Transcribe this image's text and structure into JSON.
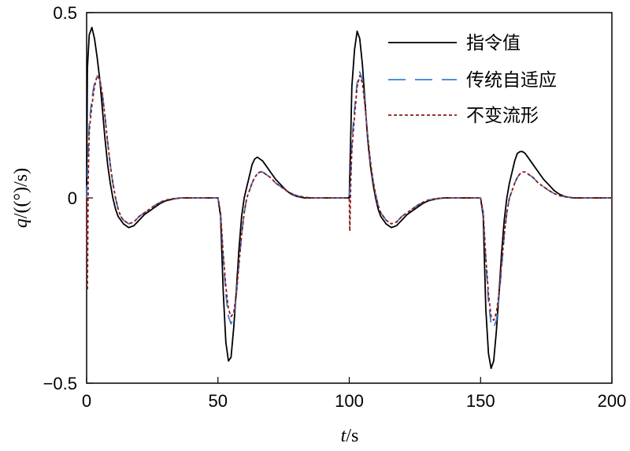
{
  "chart_data": {
    "type": "line",
    "xlabel": {
      "var": "t",
      "unit": "/s"
    },
    "ylabel": {
      "var": "q",
      "unit": "/((°)/s)"
    },
    "xlim": [
      0,
      200
    ],
    "ylim": [
      -0.5,
      0.5
    ],
    "xticks": [
      0,
      50,
      100,
      150,
      200
    ],
    "yticks": [
      -0.5,
      0,
      0.5
    ],
    "ytick_labels": [
      "−0.5",
      "0",
      "0.5"
    ],
    "grid": false,
    "legend_position": "top-right",
    "series": [
      {
        "name": "指令值",
        "color": "#000000",
        "style": "solid",
        "points": [
          [
            0,
            0
          ],
          [
            0.3,
            0.35
          ],
          [
            1,
            0.44
          ],
          [
            2,
            0.46
          ],
          [
            3,
            0.43
          ],
          [
            4,
            0.38
          ],
          [
            5,
            0.32
          ],
          [
            6,
            0.24
          ],
          [
            7,
            0.16
          ],
          [
            8,
            0.09
          ],
          [
            9,
            0.04
          ],
          [
            10,
            0.0
          ],
          [
            11,
            -0.03
          ],
          [
            12,
            -0.05
          ],
          [
            13,
            -0.06
          ],
          [
            14,
            -0.07
          ],
          [
            16,
            -0.08
          ],
          [
            18,
            -0.075
          ],
          [
            20,
            -0.06
          ],
          [
            22,
            -0.045
          ],
          [
            24,
            -0.035
          ],
          [
            26,
            -0.025
          ],
          [
            28,
            -0.015
          ],
          [
            30,
            -0.008
          ],
          [
            33,
            -0.003
          ],
          [
            36,
            0
          ],
          [
            50,
            0
          ],
          [
            51,
            -0.05
          ],
          [
            52,
            -0.25
          ],
          [
            53,
            -0.39
          ],
          [
            54,
            -0.44
          ],
          [
            55,
            -0.43
          ],
          [
            56,
            -0.35
          ],
          [
            57,
            -0.25
          ],
          [
            58,
            -0.14
          ],
          [
            59,
            -0.05
          ],
          [
            60,
            0.0
          ],
          [
            61,
            0.03
          ],
          [
            62,
            0.06
          ],
          [
            63,
            0.09
          ],
          [
            64,
            0.105
          ],
          [
            65,
            0.11
          ],
          [
            66,
            0.105
          ],
          [
            67,
            0.1
          ],
          [
            68,
            0.09
          ],
          [
            70,
            0.07
          ],
          [
            72,
            0.05
          ],
          [
            74,
            0.035
          ],
          [
            76,
            0.02
          ],
          [
            78,
            0.01
          ],
          [
            80,
            0.004
          ],
          [
            83,
            0
          ],
          [
            100,
            0
          ],
          [
            100.5,
            0.15
          ],
          [
            101,
            0.3
          ],
          [
            102,
            0.4
          ],
          [
            103,
            0.45
          ],
          [
            104,
            0.43
          ],
          [
            105,
            0.36
          ],
          [
            106,
            0.26
          ],
          [
            107,
            0.16
          ],
          [
            108,
            0.09
          ],
          [
            109,
            0.04
          ],
          [
            110,
            0.0
          ],
          [
            111,
            -0.03
          ],
          [
            112,
            -0.05
          ],
          [
            114,
            -0.07
          ],
          [
            116,
            -0.08
          ],
          [
            118,
            -0.075
          ],
          [
            120,
            -0.06
          ],
          [
            122,
            -0.045
          ],
          [
            124,
            -0.035
          ],
          [
            126,
            -0.025
          ],
          [
            128,
            -0.015
          ],
          [
            130,
            -0.008
          ],
          [
            133,
            -0.003
          ],
          [
            136,
            0
          ],
          [
            150,
            0
          ],
          [
            151,
            -0.05
          ],
          [
            152,
            -0.3
          ],
          [
            153,
            -0.42
          ],
          [
            154,
            -0.46
          ],
          [
            155,
            -0.44
          ],
          [
            156,
            -0.36
          ],
          [
            157,
            -0.26
          ],
          [
            158,
            -0.15
          ],
          [
            159,
            -0.06
          ],
          [
            160,
            0.0
          ],
          [
            161,
            0.04
          ],
          [
            162,
            0.07
          ],
          [
            163,
            0.1
          ],
          [
            164,
            0.12
          ],
          [
            165,
            0.125
          ],
          [
            166,
            0.125
          ],
          [
            167,
            0.12
          ],
          [
            168,
            0.11
          ],
          [
            170,
            0.09
          ],
          [
            172,
            0.07
          ],
          [
            174,
            0.05
          ],
          [
            176,
            0.035
          ],
          [
            178,
            0.02
          ],
          [
            180,
            0.01
          ],
          [
            182,
            0.004
          ],
          [
            185,
            0
          ],
          [
            200,
            0
          ]
        ]
      },
      {
        "name": "传统自适应",
        "color": "#3a7fd5",
        "style": "dashed",
        "points": [
          [
            0,
            0
          ],
          [
            0.5,
            0.1
          ],
          [
            1,
            0.2
          ],
          [
            2,
            0.27
          ],
          [
            3,
            0.31
          ],
          [
            4,
            0.33
          ],
          [
            5,
            0.32
          ],
          [
            6,
            0.28
          ],
          [
            7,
            0.22
          ],
          [
            8,
            0.15
          ],
          [
            9,
            0.09
          ],
          [
            10,
            0.04
          ],
          [
            11,
            0.0
          ],
          [
            12,
            -0.03
          ],
          [
            13,
            -0.05
          ],
          [
            14,
            -0.06
          ],
          [
            16,
            -0.07
          ],
          [
            18,
            -0.065
          ],
          [
            20,
            -0.05
          ],
          [
            22,
            -0.04
          ],
          [
            24,
            -0.03
          ],
          [
            26,
            -0.02
          ],
          [
            28,
            -0.012
          ],
          [
            30,
            -0.006
          ],
          [
            33,
            -0.002
          ],
          [
            36,
            0
          ],
          [
            50,
            0
          ],
          [
            51,
            -0.04
          ],
          [
            52,
            -0.16
          ],
          [
            53,
            -0.26
          ],
          [
            54,
            -0.32
          ],
          [
            55,
            -0.34
          ],
          [
            56,
            -0.32
          ],
          [
            57,
            -0.26
          ],
          [
            58,
            -0.18
          ],
          [
            59,
            -0.1
          ],
          [
            60,
            -0.04
          ],
          [
            61,
            0.0
          ],
          [
            62,
            0.02
          ],
          [
            63,
            0.04
          ],
          [
            64,
            0.055
          ],
          [
            65,
            0.065
          ],
          [
            66,
            0.07
          ],
          [
            67,
            0.07
          ],
          [
            68,
            0.065
          ],
          [
            70,
            0.055
          ],
          [
            72,
            0.04
          ],
          [
            74,
            0.03
          ],
          [
            76,
            0.02
          ],
          [
            78,
            0.012
          ],
          [
            80,
            0.006
          ],
          [
            83,
            0.002
          ],
          [
            86,
            0
          ],
          [
            100,
            0
          ],
          [
            100.5,
            0.05
          ],
          [
            101,
            0.15
          ],
          [
            102,
            0.24
          ],
          [
            103,
            0.31
          ],
          [
            104,
            0.34
          ],
          [
            105,
            0.32
          ],
          [
            106,
            0.25
          ],
          [
            107,
            0.17
          ],
          [
            108,
            0.1
          ],
          [
            109,
            0.05
          ],
          [
            110,
            0.01
          ],
          [
            111,
            -0.02
          ],
          [
            112,
            -0.04
          ],
          [
            114,
            -0.06
          ],
          [
            116,
            -0.07
          ],
          [
            118,
            -0.065
          ],
          [
            120,
            -0.05
          ],
          [
            122,
            -0.04
          ],
          [
            124,
            -0.03
          ],
          [
            126,
            -0.02
          ],
          [
            128,
            -0.012
          ],
          [
            130,
            -0.006
          ],
          [
            133,
            -0.002
          ],
          [
            136,
            0
          ],
          [
            150,
            0
          ],
          [
            151,
            -0.04
          ],
          [
            152,
            -0.17
          ],
          [
            153,
            -0.28
          ],
          [
            154,
            -0.34
          ],
          [
            155,
            -0.35
          ],
          [
            156,
            -0.33
          ],
          [
            157,
            -0.27
          ],
          [
            158,
            -0.19
          ],
          [
            159,
            -0.1
          ],
          [
            160,
            -0.04
          ],
          [
            161,
            0.0
          ],
          [
            162,
            0.02
          ],
          [
            163,
            0.04
          ],
          [
            164,
            0.055
          ],
          [
            165,
            0.065
          ],
          [
            166,
            0.07
          ],
          [
            167,
            0.07
          ],
          [
            168,
            0.065
          ],
          [
            170,
            0.055
          ],
          [
            172,
            0.04
          ],
          [
            174,
            0.03
          ],
          [
            176,
            0.02
          ],
          [
            178,
            0.012
          ],
          [
            180,
            0.006
          ],
          [
            183,
            0.002
          ],
          [
            186,
            0
          ],
          [
            200,
            0
          ]
        ]
      },
      {
        "name": "不变流形",
        "color": "#8b1a1a",
        "style": "dotted",
        "points": [
          [
            0,
            0
          ],
          [
            0.3,
            -0.25
          ],
          [
            0.6,
            0.05
          ],
          [
            1,
            0.18
          ],
          [
            2,
            0.25
          ],
          [
            3,
            0.3
          ],
          [
            4,
            0.33
          ],
          [
            5,
            0.32
          ],
          [
            6,
            0.28
          ],
          [
            7,
            0.22
          ],
          [
            8,
            0.15
          ],
          [
            9,
            0.09
          ],
          [
            10,
            0.04
          ],
          [
            11,
            0.0
          ],
          [
            12,
            -0.03
          ],
          [
            13,
            -0.05
          ],
          [
            14,
            -0.06
          ],
          [
            16,
            -0.07
          ],
          [
            18,
            -0.065
          ],
          [
            20,
            -0.05
          ],
          [
            22,
            -0.04
          ],
          [
            24,
            -0.03
          ],
          [
            26,
            -0.02
          ],
          [
            28,
            -0.012
          ],
          [
            30,
            -0.006
          ],
          [
            33,
            -0.002
          ],
          [
            36,
            0
          ],
          [
            50,
            0
          ],
          [
            51,
            -0.04
          ],
          [
            52,
            -0.15
          ],
          [
            53,
            -0.24
          ],
          [
            54,
            -0.3
          ],
          [
            55,
            -0.32
          ],
          [
            56,
            -0.31
          ],
          [
            57,
            -0.26
          ],
          [
            58,
            -0.18
          ],
          [
            59,
            -0.1
          ],
          [
            60,
            -0.04
          ],
          [
            61,
            0.0
          ],
          [
            62,
            0.02
          ],
          [
            63,
            0.04
          ],
          [
            64,
            0.055
          ],
          [
            65,
            0.065
          ],
          [
            66,
            0.07
          ],
          [
            67,
            0.07
          ],
          [
            68,
            0.065
          ],
          [
            70,
            0.055
          ],
          [
            72,
            0.04
          ],
          [
            74,
            0.03
          ],
          [
            76,
            0.02
          ],
          [
            78,
            0.012
          ],
          [
            80,
            0.006
          ],
          [
            83,
            0.002
          ],
          [
            86,
            0
          ],
          [
            100,
            0
          ],
          [
            100.2,
            -0.09
          ],
          [
            100.6,
            0.05
          ],
          [
            101,
            0.13
          ],
          [
            102,
            0.22
          ],
          [
            103,
            0.3
          ],
          [
            104,
            0.33
          ],
          [
            105,
            0.31
          ],
          [
            106,
            0.25
          ],
          [
            107,
            0.17
          ],
          [
            108,
            0.1
          ],
          [
            109,
            0.05
          ],
          [
            110,
            0.01
          ],
          [
            111,
            -0.02
          ],
          [
            112,
            -0.04
          ],
          [
            114,
            -0.06
          ],
          [
            116,
            -0.07
          ],
          [
            118,
            -0.065
          ],
          [
            120,
            -0.05
          ],
          [
            122,
            -0.04
          ],
          [
            124,
            -0.03
          ],
          [
            126,
            -0.02
          ],
          [
            128,
            -0.012
          ],
          [
            130,
            -0.006
          ],
          [
            133,
            -0.002
          ],
          [
            136,
            0
          ],
          [
            150,
            0
          ],
          [
            151,
            -0.04
          ],
          [
            152,
            -0.16
          ],
          [
            153,
            -0.26
          ],
          [
            154,
            -0.32
          ],
          [
            155,
            -0.33
          ],
          [
            156,
            -0.31
          ],
          [
            157,
            -0.26
          ],
          [
            158,
            -0.18
          ],
          [
            159,
            -0.1
          ],
          [
            160,
            -0.04
          ],
          [
            161,
            0.0
          ],
          [
            162,
            0.02
          ],
          [
            163,
            0.04
          ],
          [
            164,
            0.055
          ],
          [
            165,
            0.065
          ],
          [
            166,
            0.07
          ],
          [
            167,
            0.07
          ],
          [
            168,
            0.065
          ],
          [
            170,
            0.055
          ],
          [
            172,
            0.04
          ],
          [
            174,
            0.03
          ],
          [
            176,
            0.02
          ],
          [
            178,
            0.012
          ],
          [
            180,
            0.006
          ],
          [
            183,
            0.002
          ],
          [
            186,
            0
          ],
          [
            200,
            0
          ]
        ]
      }
    ]
  }
}
